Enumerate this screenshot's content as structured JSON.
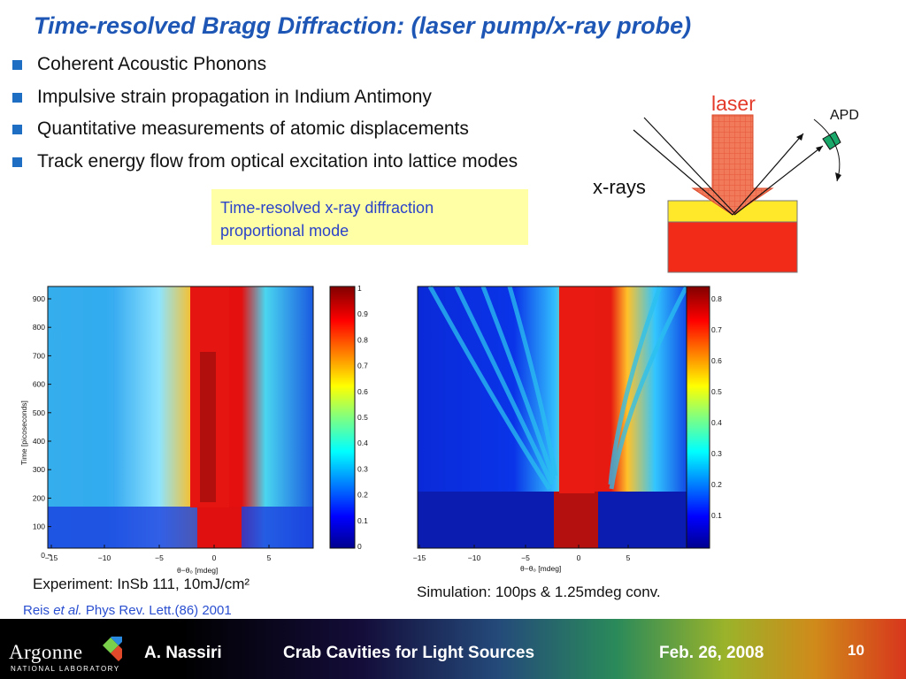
{
  "slide": {
    "title": "Time-resolved Bragg Diffraction: (laser pump/x-ray probe)",
    "bullets": [
      "Coherent Acoustic Phonons",
      "Impulsive strain propagation in Indium Antimony",
      "Quantitative measurements of atomic displacements",
      "Track energy flow from optical excitation into lattice modes"
    ],
    "note_lines": [
      "Time-resolved x-ray diffraction",
      "proportional mode"
    ],
    "diagram": {
      "laser_label": "laser",
      "apd_label": "APD",
      "xray_label": "x-rays"
    },
    "left_plot": {
      "ylabel": "Time [picoseconds]",
      "xlabel": "θ−θ₀ [mdeg]",
      "yticks": [
        "900",
        "800",
        "700",
        "600",
        "500",
        "400",
        "300",
        "200",
        "100",
        "0"
      ],
      "xticks": [
        "−15",
        "−10",
        "−5",
        "0",
        "5"
      ],
      "colorbar_ticks": [
        "1",
        "0.9",
        "0.8",
        "0.7",
        "0.6",
        "0.5",
        "0.4",
        "0.3",
        "0.2",
        "0.1",
        "0"
      ]
    },
    "right_plot": {
      "xlabel": "θ−θ₀ [mdeg]",
      "xticks": [
        "−15",
        "−10",
        "−5",
        "0",
        "5"
      ],
      "colorbar_ticks": [
        "0.8",
        "0.7",
        "0.6",
        "0.5",
        "0.4",
        "0.3",
        "0.2",
        "0.1"
      ]
    },
    "caption_left": "Experiment: InSb 111, 10mJ/cm²",
    "caption_right": "Simulation: 100ps & 1.25mdeg conv.",
    "reference": {
      "pre": "Reis ",
      "italic": "et al.",
      "post": " Phys Rev. Lett.(86) 2001"
    }
  },
  "footer": {
    "logo_text": "Argonne",
    "logo_sub": "NATIONAL LABORATORY",
    "author": "A. Nassiri",
    "talk": "Crab Cavities for Light Sources",
    "date": "Feb. 26, 2008",
    "page": "10"
  },
  "colors": {
    "title": "#1d56b5",
    "bullet": "#1e6fc4",
    "note_bg": "#ffffa6",
    "note_text": "#2b43c9",
    "ref": "#2a4fd0"
  }
}
